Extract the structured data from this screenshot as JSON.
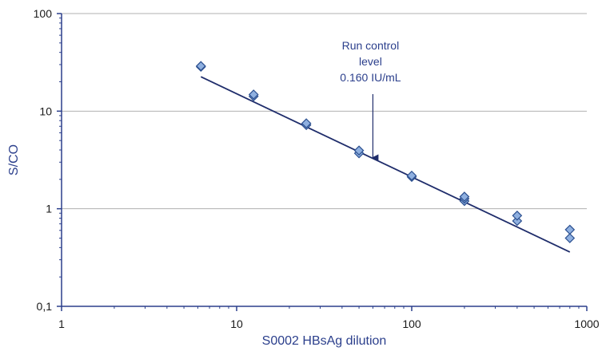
{
  "chart_data": {
    "type": "scatter",
    "title": "",
    "xlabel": "S0002 HBsAg dilution",
    "ylabel": "S/CO",
    "x_scale": "log",
    "y_scale": "log",
    "xlim": [
      1,
      1000
    ],
    "ylim": [
      0.1,
      100
    ],
    "x_ticks": [
      {
        "value": 1,
        "label": "1"
      },
      {
        "value": 10,
        "label": "10"
      },
      {
        "value": 100,
        "label": "100"
      },
      {
        "value": 1000,
        "label": "1000"
      }
    ],
    "y_ticks": [
      {
        "value": 0.1,
        "label": "0,1"
      },
      {
        "value": 1,
        "label": "1"
      },
      {
        "value": 10,
        "label": "10"
      },
      {
        "value": 100,
        "label": "100"
      }
    ],
    "grid": "horizontal",
    "series": [
      {
        "marker": "diamond",
        "color": "#8fb0e0",
        "points": [
          {
            "x": 6.25,
            "y": 28.5
          },
          {
            "x": 6.25,
            "y": 29.0
          },
          {
            "x": 12.5,
            "y": 14.2
          },
          {
            "x": 12.5,
            "y": 14.8
          },
          {
            "x": 25,
            "y": 7.2
          },
          {
            "x": 25,
            "y": 7.5
          },
          {
            "x": 50,
            "y": 3.7
          },
          {
            "x": 50,
            "y": 3.95
          },
          {
            "x": 100,
            "y": 2.12
          },
          {
            "x": 100,
            "y": 2.18
          },
          {
            "x": 200,
            "y": 1.2
          },
          {
            "x": 200,
            "y": 1.27
          },
          {
            "x": 200,
            "y": 1.33
          },
          {
            "x": 400,
            "y": 0.75
          },
          {
            "x": 400,
            "y": 0.85
          },
          {
            "x": 800,
            "y": 0.5
          },
          {
            "x": 800,
            "y": 0.61
          }
        ]
      }
    ],
    "trendline": {
      "x": [
        6.25,
        800
      ],
      "y": [
        22.5,
        0.36
      ],
      "color": "#1f2d6b"
    },
    "annotation": {
      "lines": [
        "Run control",
        "level",
        "0.160 IU/mL"
      ],
      "arrow_x": 60,
      "arrow_y": 3.35
    },
    "colors": {
      "axis": "#2b3f8c",
      "grid": "#b0b0b0",
      "marker_fill": "#8fb0e0",
      "marker_stroke": "#2b4f8f",
      "trendline": "#1f2d6b"
    }
  }
}
